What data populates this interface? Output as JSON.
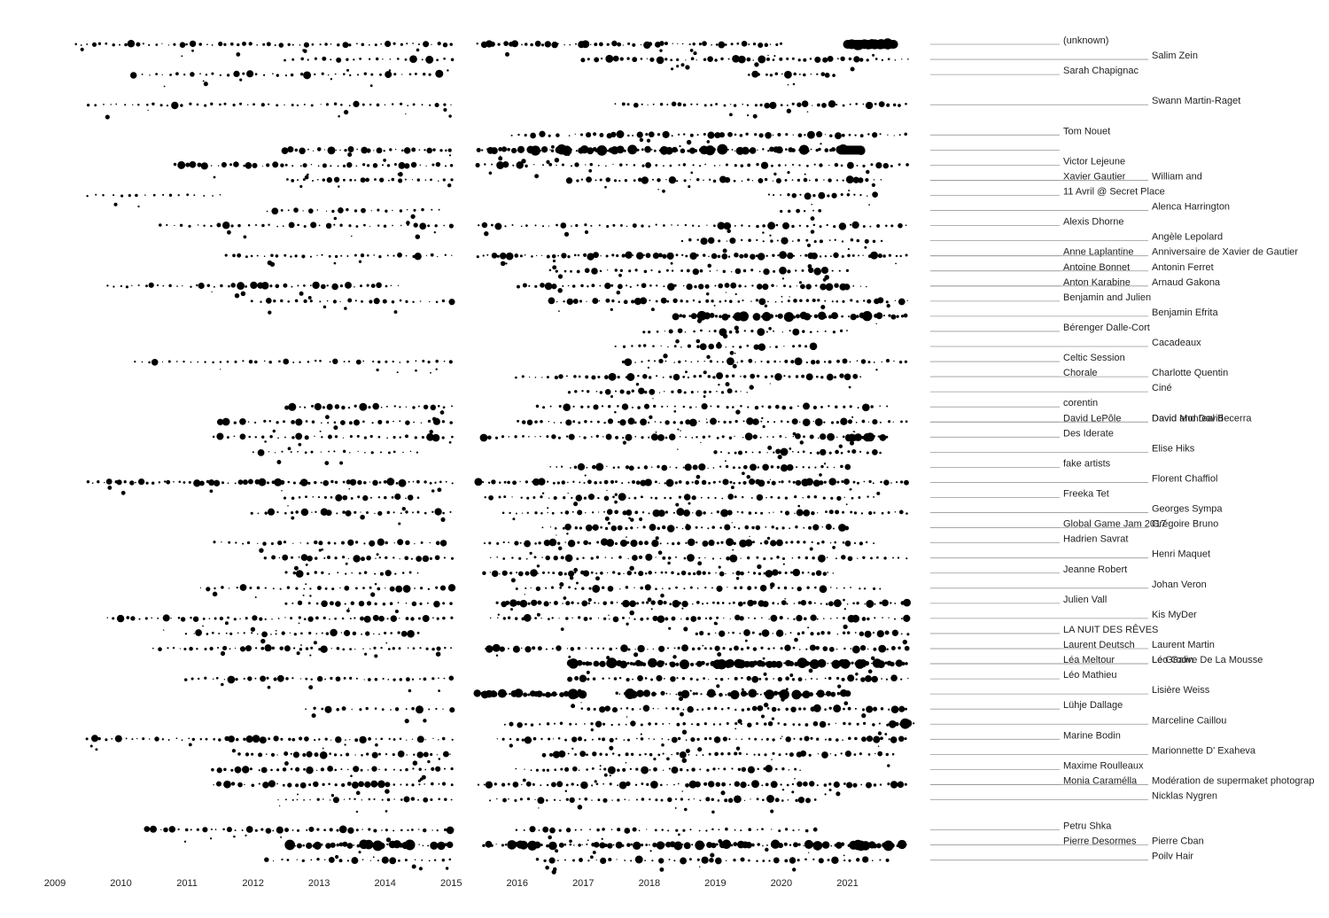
{
  "chart_data": {
    "type": "scatter",
    "title": "",
    "xlabel": "",
    "ylabel": "",
    "x_ticks": [
      "2009",
      "2010",
      "2011",
      "2012",
      "2013",
      "2014",
      "2015",
      "2016",
      "2017",
      "2018",
      "2019",
      "2020",
      "2021"
    ],
    "xlim": [
      2009.0,
      2022.0
    ],
    "marker_color": "#000000",
    "leader_color": "#999999",
    "label_columns": [
      "left",
      "right"
    ],
    "rows": [
      {
        "name": "(unknown)",
        "col": "left",
        "lane": 0,
        "spans": [
          [
            2009.3,
            2015.0,
            3
          ],
          [
            2015.4,
            2020.0,
            4
          ],
          [
            2021.0,
            2021.7,
            9
          ]
        ]
      },
      {
        "name": "Salim Zein",
        "col": "right",
        "lane": 1,
        "spans": [
          [
            2012.5,
            2015.0,
            2
          ],
          [
            2017.0,
            2021.9,
            3
          ]
        ]
      },
      {
        "name": "Sarah Chapignac",
        "col": "left",
        "lane": 2,
        "spans": [
          [
            2010.2,
            2014.8,
            2
          ],
          [
            2019.5,
            2020.8,
            4
          ]
        ]
      },
      {
        "name": "Swann Martin-Raget",
        "col": "right",
        "lane": 4,
        "spans": [
          [
            2009.5,
            2015.0,
            2
          ],
          [
            2017.5,
            2021.9,
            3
          ]
        ]
      },
      {
        "name": "Tom Nouet",
        "col": "left",
        "lane": 6,
        "spans": [
          [
            2015.9,
            2016.6,
            3
          ],
          [
            2016.8,
            2021.9,
            3
          ]
        ]
      },
      {
        "name": "",
        "col": "left",
        "lane": 7,
        "spans": [
          [
            2012.5,
            2015.0,
            4
          ],
          [
            2015.4,
            2020.8,
            5
          ],
          [
            2020.9,
            2021.2,
            7
          ]
        ]
      },
      {
        "name": "Victor Lejeune",
        "col": "left",
        "lane": 8,
        "spans": [
          [
            2010.8,
            2015.0,
            3
          ],
          [
            2015.4,
            2021.9,
            2
          ]
        ]
      },
      {
        "name": "Xavier Gautier",
        "col": "left",
        "lane": 9,
        "spans": [
          [
            2012.5,
            2015.0,
            3
          ],
          [
            2016.8,
            2021.5,
            3
          ]
        ]
      },
      {
        "name": "William and",
        "col": "right",
        "lane": 9,
        "spans": []
      },
      {
        "name": "11 Avril @ Secret Place",
        "col": "left",
        "lane": 10,
        "spans": [
          [
            2009.5,
            2011.5,
            1
          ],
          [
            2019.8,
            2021.4,
            3
          ]
        ]
      },
      {
        "name": "Alenca Harrington",
        "col": "right",
        "lane": 11,
        "spans": [
          [
            2012.2,
            2014.8,
            2
          ],
          [
            2020.0,
            2020.6,
            3
          ]
        ]
      },
      {
        "name": "Alexis Dhorne",
        "col": "left",
        "lane": 12,
        "spans": [
          [
            2010.6,
            2015.0,
            2
          ],
          [
            2015.4,
            2021.9,
            2
          ]
        ]
      },
      {
        "name": "Angèle Lepolard",
        "col": "right",
        "lane": 13,
        "spans": [
          [
            2018.5,
            2021.5,
            2
          ]
        ]
      },
      {
        "name": "Anne Laplantine",
        "col": "left",
        "lane": 14,
        "spans": [
          [
            2011.6,
            2015.0,
            3
          ],
          [
            2015.4,
            2021.9,
            4
          ]
        ]
      },
      {
        "name": "Anniversaire de Xavier de Gautier",
        "col": "right",
        "lane": 14,
        "spans": []
      },
      {
        "name": "Antoine Bonnet",
        "col": "left",
        "lane": 15,
        "spans": [
          [
            2016.5,
            2021.0,
            2
          ]
        ]
      },
      {
        "name": "Antonin Ferret",
        "col": "right",
        "lane": 15,
        "spans": []
      },
      {
        "name": "Anton Karabine",
        "col": "left",
        "lane": 16,
        "spans": [
          [
            2009.8,
            2014.2,
            3
          ],
          [
            2016.0,
            2021.3,
            3
          ]
        ]
      },
      {
        "name": "Arnaud Gakona",
        "col": "right",
        "lane": 16,
        "spans": []
      },
      {
        "name": "Benjamin and Julien",
        "col": "left",
        "lane": 17,
        "spans": [
          [
            2012.0,
            2015.0,
            2
          ],
          [
            2016.5,
            2021.9,
            3
          ]
        ]
      },
      {
        "name": "Benjamin Efrita",
        "col": "right",
        "lane": 18,
        "spans": [
          [
            2018.4,
            2021.9,
            5
          ]
        ]
      },
      {
        "name": "Bérenger Dalle-Cort",
        "col": "left",
        "lane": 19,
        "spans": [
          [
            2017.9,
            2021.0,
            2
          ]
        ]
      },
      {
        "name": "Cacadeaux",
        "col": "right",
        "lane": 20,
        "spans": [
          [
            2017.5,
            2020.5,
            2
          ]
        ]
      },
      {
        "name": "Celtic Session",
        "col": "left",
        "lane": 21,
        "spans": [
          [
            2010.2,
            2015.0,
            2
          ],
          [
            2017.6,
            2021.9,
            3
          ]
        ]
      },
      {
        "name": "Charlotte Quentin",
        "col": "right",
        "lane": 22,
        "spans": [
          [
            2016.0,
            2021.2,
            3
          ]
        ]
      },
      {
        "name": "Chorale",
        "col": "left",
        "lane": 22,
        "spans": []
      },
      {
        "name": "Ciné",
        "col": "right",
        "lane": 23,
        "spans": [
          [
            2016.8,
            2019.5,
            3
          ]
        ]
      },
      {
        "name": "corentin",
        "col": "left",
        "lane": 24,
        "spans": [
          [
            2012.5,
            2015.0,
            3
          ],
          [
            2016.3,
            2021.6,
            2
          ]
        ]
      },
      {
        "name": "David and David",
        "col": "right",
        "lane": 25,
        "spans": [
          [
            2011.5,
            2015.0,
            2
          ],
          [
            2016.0,
            2021.9,
            3
          ]
        ]
      },
      {
        "name": "David LePôle",
        "col": "left",
        "lane": 25,
        "spans": []
      },
      {
        "name": "David Monreal Becerra",
        "col": "right",
        "lane": 25,
        "spans": []
      },
      {
        "name": "Des Iderate",
        "col": "left",
        "lane": 26,
        "spans": [
          [
            2011.4,
            2015.0,
            2
          ],
          [
            2015.5,
            2021.5,
            3
          ],
          [
            2021.0,
            2021.6,
            6
          ]
        ]
      },
      {
        "name": "Elise Hiks",
        "col": "right",
        "lane": 27,
        "spans": [
          [
            2012.0,
            2014.5,
            2
          ],
          [
            2019.0,
            2021.5,
            3
          ]
        ]
      },
      {
        "name": "fake artists",
        "col": "left",
        "lane": 28,
        "spans": [
          [
            2016.5,
            2021.0,
            3
          ]
        ]
      },
      {
        "name": "Florent Chaffiol",
        "col": "right",
        "lane": 29,
        "spans": [
          [
            2009.5,
            2015.0,
            4
          ],
          [
            2015.4,
            2021.9,
            4
          ]
        ]
      },
      {
        "name": "Freeka Tet",
        "col": "left",
        "lane": 30,
        "spans": [
          [
            2012.5,
            2014.5,
            3
          ],
          [
            2015.5,
            2021.4,
            2
          ]
        ]
      },
      {
        "name": "Georges Sympa",
        "col": "right",
        "lane": 31,
        "spans": [
          [
            2012.0,
            2015.0,
            3
          ],
          [
            2015.8,
            2021.9,
            3
          ]
        ]
      },
      {
        "name": "Global Game Jam 2017",
        "col": "left",
        "lane": 32,
        "spans": [
          [
            2016.4,
            2021.0,
            3
          ]
        ]
      },
      {
        "name": "Grégoire Bruno",
        "col": "right",
        "lane": 32,
        "spans": []
      },
      {
        "name": "Hadrien Savrat",
        "col": "left",
        "lane": 33,
        "spans": [
          [
            2011.4,
            2014.9,
            2
          ],
          [
            2015.5,
            2021.4,
            3
          ]
        ]
      },
      {
        "name": "Henri Maquet",
        "col": "right",
        "lane": 34,
        "spans": [
          [
            2012.2,
            2015.0,
            3
          ],
          [
            2015.6,
            2021.9,
            2
          ]
        ]
      },
      {
        "name": "Jeanne Robert",
        "col": "left",
        "lane": 35,
        "spans": [
          [
            2012.5,
            2014.5,
            2
          ],
          [
            2015.5,
            2020.8,
            4
          ]
        ]
      },
      {
        "name": "Johan Veron",
        "col": "right",
        "lane": 36,
        "spans": [
          [
            2011.2,
            2015.0,
            2
          ],
          [
            2016.0,
            2021.5,
            2
          ]
        ]
      },
      {
        "name": "Julien Vall",
        "col": "left",
        "lane": 37,
        "spans": [
          [
            2012.5,
            2015.0,
            2
          ],
          [
            2015.7,
            2021.9,
            4
          ]
        ]
      },
      {
        "name": "Kis MyDer",
        "col": "right",
        "lane": 38,
        "spans": [
          [
            2009.8,
            2015.0,
            3
          ],
          [
            2015.6,
            2021.9,
            3
          ]
        ]
      },
      {
        "name": "LA NUIT DES RÊVES",
        "col": "left",
        "lane": 39,
        "spans": [
          [
            2011.0,
            2014.5,
            3
          ],
          [
            2018.7,
            2021.9,
            3
          ]
        ]
      },
      {
        "name": "Laurent Deutsch",
        "col": "left",
        "lane": 40,
        "spans": [
          [
            2010.5,
            2015.0,
            3
          ],
          [
            2015.5,
            2021.9,
            3
          ]
        ]
      },
      {
        "name": "Laurent Martin",
        "col": "right",
        "lane": 40,
        "spans": []
      },
      {
        "name": "Léa Meltour",
        "col": "left",
        "lane": 41,
        "spans": [
          [
            2016.8,
            2021.9,
            6
          ]
        ]
      },
      {
        "name": "Léo Galin",
        "col": "right",
        "lane": 41,
        "spans": []
      },
      {
        "name": "Le Groove De La Mousse",
        "col": "right",
        "lane": 41,
        "spans": []
      },
      {
        "name": "Léo Mathieu",
        "col": "left",
        "lane": 42,
        "spans": [
          [
            2011.0,
            2015.0,
            3
          ],
          [
            2016.8,
            2021.9,
            3
          ]
        ]
      },
      {
        "name": "Lisière Weiss",
        "col": "right",
        "lane": 43,
        "spans": [
          [
            2015.4,
            2017.0,
            6
          ],
          [
            2017.5,
            2021.0,
            5
          ]
        ]
      },
      {
        "name": "Lühje Dallage",
        "col": "left",
        "lane": 44,
        "spans": [
          [
            2012.8,
            2015.0,
            2
          ],
          [
            2017.0,
            2021.9,
            3
          ]
        ]
      },
      {
        "name": "Marceline Caillou",
        "col": "right",
        "lane": 45,
        "spans": [
          [
            2015.8,
            2021.6,
            2
          ],
          [
            2021.6,
            2022.0,
            6
          ]
        ]
      },
      {
        "name": "Marine Bodin",
        "col": "left",
        "lane": 46,
        "spans": [
          [
            2009.5,
            2015.0,
            3
          ],
          [
            2015.7,
            2021.9,
            3
          ]
        ]
      },
      {
        "name": "Marionnette D' Exaheva",
        "col": "right",
        "lane": 47,
        "spans": [
          [
            2011.8,
            2015.0,
            3
          ],
          [
            2016.4,
            2021.7,
            3
          ]
        ]
      },
      {
        "name": "Maxime Roulleaux",
        "col": "left",
        "lane": 48,
        "spans": [
          [
            2011.4,
            2015.0,
            3
          ],
          [
            2016.0,
            2020.3,
            3
          ]
        ]
      },
      {
        "name": "Monia Caramélla",
        "col": "left",
        "lane": 49,
        "spans": [
          [
            2011.4,
            2015.0,
            3
          ],
          [
            2015.4,
            2021.9,
            3
          ]
        ]
      },
      {
        "name": "Modération de supermaket photograp",
        "col": "right",
        "lane": 49,
        "spans": []
      },
      {
        "name": "Nicklas Nygren",
        "col": "right",
        "lane": 50,
        "spans": [
          [
            2012.4,
            2015.0,
            3
          ],
          [
            2015.6,
            2020.5,
            3
          ]
        ]
      },
      {
        "name": "Petru Shka",
        "col": "left",
        "lane": 52,
        "spans": [
          [
            2010.4,
            2015.0,
            3
          ],
          [
            2016.0,
            2020.5,
            2
          ]
        ]
      },
      {
        "name": "Pierre Desormes",
        "col": "left",
        "lane": 53,
        "spans": [
          [
            2012.5,
            2015.0,
            5
          ],
          [
            2015.5,
            2021.9,
            5
          ]
        ]
      },
      {
        "name": "Pierre Cban",
        "col": "right",
        "lane": 53,
        "spans": []
      },
      {
        "name": "Poilv Hair",
        "col": "right",
        "lane": 54,
        "spans": [
          [
            2012.2,
            2015.0,
            2
          ],
          [
            2016.3,
            2021.6,
            2
          ]
        ]
      }
    ]
  }
}
